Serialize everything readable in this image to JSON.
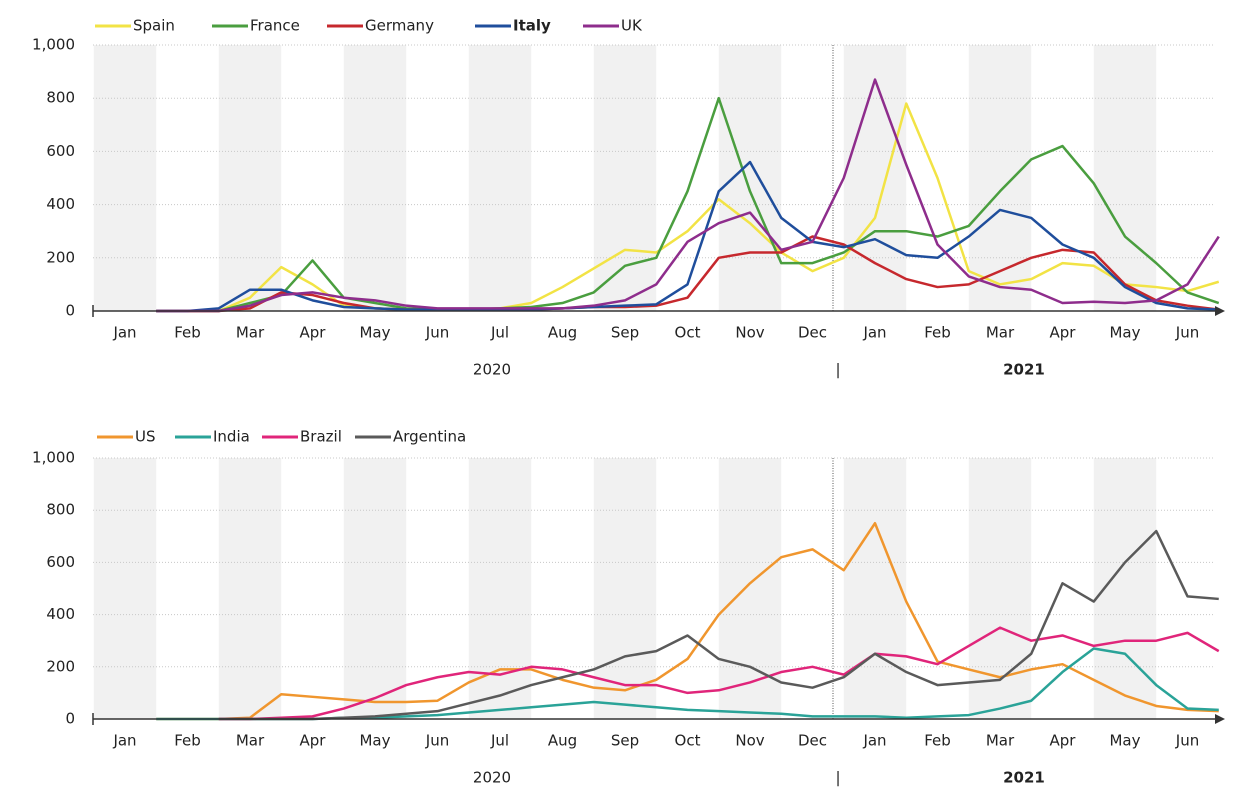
{
  "chart_data": [
    {
      "type": "line",
      "categories": [
        "Jan",
        null,
        "Feb",
        null,
        "Mar",
        null,
        "Apr",
        null,
        "May",
        null,
        "Jun",
        null,
        "Jul",
        null,
        "Aug",
        null,
        "Sep",
        null,
        "Oct",
        null,
        "Nov",
        null,
        "Dec",
        null,
        "Jan",
        null,
        "Feb",
        null,
        "Mar",
        null,
        "Apr",
        null,
        "May",
        null,
        "Jun",
        null
      ],
      "year_labels": [
        {
          "label": "2020",
          "bold": false
        },
        {
          "label": "|",
          "bold": false
        },
        {
          "label": "2021",
          "bold": true
        }
      ],
      "ylim": [
        0,
        1000
      ],
      "yticks": [
        0,
        200,
        400,
        600,
        800,
        {
          "value": 1000,
          "label": "1,000"
        }
      ],
      "grid": true,
      "series": [
        {
          "name": "Spain",
          "color": "#f2e345",
          "bold": false,
          "values": [
            null,
            0,
            0,
            0,
            50,
            165,
            100,
            20,
            10,
            5,
            5,
            5,
            10,
            30,
            90,
            160,
            230,
            220,
            300,
            420,
            330,
            220,
            150,
            200,
            350,
            780,
            500,
            150,
            100,
            120,
            180,
            170,
            100,
            90,
            75,
            110
          ]
        },
        {
          "name": "France",
          "color": "#4a9e3f",
          "bold": false,
          "values": [
            null,
            0,
            0,
            0,
            30,
            60,
            190,
            50,
            30,
            10,
            5,
            5,
            10,
            15,
            30,
            70,
            170,
            200,
            450,
            800,
            450,
            180,
            180,
            220,
            300,
            300,
            280,
            320,
            450,
            570,
            620,
            480,
            280,
            180,
            70,
            30
          ]
        },
        {
          "name": "Germany",
          "color": "#c6282d",
          "bold": false,
          "values": [
            null,
            0,
            0,
            0,
            10,
            70,
            60,
            30,
            10,
            5,
            5,
            5,
            5,
            5,
            10,
            15,
            15,
            20,
            50,
            200,
            220,
            220,
            280,
            250,
            180,
            120,
            90,
            100,
            150,
            200,
            230,
            220,
            100,
            40,
            20,
            5
          ]
        },
        {
          "name": "Italy",
          "color": "#1f4e9c",
          "bold": true,
          "values": [
            null,
            0,
            0,
            10,
            80,
            80,
            40,
            15,
            10,
            5,
            5,
            5,
            5,
            5,
            10,
            15,
            20,
            25,
            100,
            450,
            560,
            350,
            260,
            240,
            270,
            210,
            200,
            280,
            380,
            350,
            250,
            200,
            90,
            30,
            10,
            5
          ]
        },
        {
          "name": "UK",
          "color": "#8e2d8c",
          "bold": false,
          "values": [
            null,
            0,
            0,
            0,
            20,
            60,
            70,
            50,
            40,
            20,
            10,
            10,
            10,
            10,
            10,
            20,
            40,
            100,
            260,
            330,
            370,
            230,
            260,
            500,
            870,
            550,
            250,
            130,
            90,
            80,
            30,
            35,
            30,
            40,
            100,
            280
          ]
        }
      ]
    },
    {
      "type": "line",
      "categories": [
        "Jan",
        null,
        "Feb",
        null,
        "Mar",
        null,
        "Apr",
        null,
        "May",
        null,
        "Jun",
        null,
        "Jul",
        null,
        "Aug",
        null,
        "Sep",
        null,
        "Oct",
        null,
        "Nov",
        null,
        "Dec",
        null,
        "Jan",
        null,
        "Feb",
        null,
        "Mar",
        null,
        "Apr",
        null,
        "May",
        null,
        "Jun",
        null
      ],
      "year_labels": [
        {
          "label": "2020",
          "bold": false
        },
        {
          "label": "|",
          "bold": false
        },
        {
          "label": "2021",
          "bold": true
        }
      ],
      "ylim": [
        0,
        1000
      ],
      "yticks": [
        0,
        200,
        400,
        600,
        800,
        {
          "value": 1000,
          "label": "1,000"
        }
      ],
      "grid": true,
      "series": [
        {
          "name": "US",
          "color": "#f0962e",
          "bold": false,
          "values": [
            null,
            0,
            0,
            0,
            5,
            95,
            85,
            75,
            65,
            65,
            70,
            140,
            190,
            190,
            150,
            120,
            110,
            150,
            230,
            400,
            520,
            620,
            650,
            570,
            750,
            450,
            220,
            190,
            160,
            190,
            210,
            150,
            90,
            50,
            35,
            30
          ]
        },
        {
          "name": "India",
          "color": "#2aa398",
          "bold": false,
          "values": [
            null,
            0,
            0,
            0,
            0,
            0,
            0,
            5,
            5,
            10,
            15,
            25,
            35,
            45,
            55,
            65,
            55,
            45,
            35,
            30,
            25,
            20,
            10,
            10,
            10,
            5,
            10,
            15,
            40,
            70,
            180,
            270,
            250,
            130,
            40,
            35
          ]
        },
        {
          "name": "Brazil",
          "color": "#e0257a",
          "bold": false,
          "values": [
            null,
            null,
            null,
            0,
            0,
            5,
            10,
            40,
            80,
            130,
            160,
            180,
            170,
            200,
            190,
            160,
            130,
            130,
            100,
            110,
            140,
            180,
            200,
            170,
            250,
            240,
            210,
            280,
            350,
            300,
            320,
            280,
            300,
            300,
            330,
            260
          ]
        },
        {
          "name": "Argentina",
          "color": "#5a5a5a",
          "bold": false,
          "values": [
            null,
            null,
            null,
            0,
            0,
            0,
            0,
            5,
            10,
            20,
            30,
            60,
            90,
            130,
            160,
            190,
            240,
            260,
            320,
            230,
            200,
            140,
            120,
            160,
            250,
            180,
            130,
            140,
            150,
            250,
            520,
            450,
            600,
            720,
            470,
            460
          ]
        }
      ]
    }
  ]
}
